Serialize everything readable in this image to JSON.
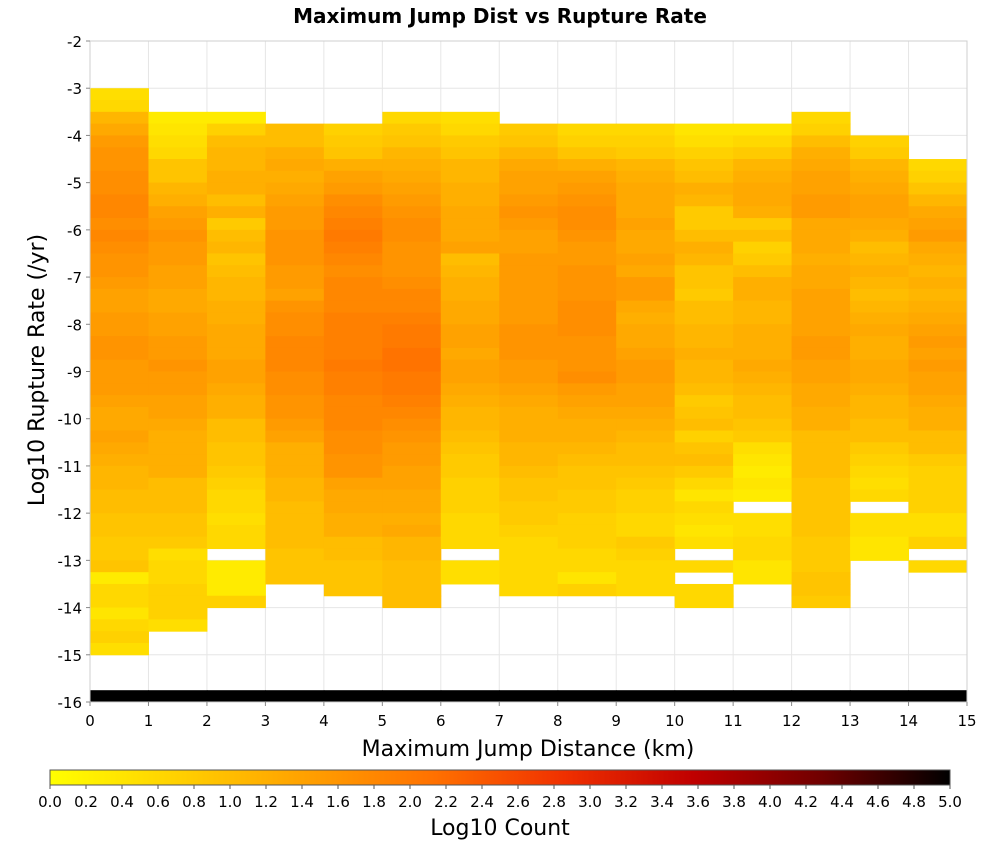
{
  "chart_data": {
    "type": "heatmap",
    "title": "Maximum Jump Dist vs Rupture Rate",
    "xlabel": "Maximum Jump Distance (km)",
    "ylabel": "Log10 Rupture Rate (/yr)",
    "xlim": [
      0,
      15
    ],
    "ylim": [
      -16,
      -2
    ],
    "x_ticks": [
      "0",
      "1",
      "2",
      "3",
      "4",
      "5",
      "6",
      "7",
      "8",
      "9",
      "10",
      "11",
      "12",
      "13",
      "14",
      "15"
    ],
    "y_ticks": [
      "-2",
      "-3",
      "-4",
      "-5",
      "-6",
      "-7",
      "-8",
      "-9",
      "-10",
      "-11",
      "-12",
      "-13",
      "-14",
      "-15",
      "-16"
    ],
    "colorbar": {
      "label": "Log10 Count",
      "range": [
        0,
        5
      ],
      "ticks": [
        "0.0",
        "0.2",
        "0.4",
        "0.6",
        "0.8",
        "1.0",
        "1.2",
        "1.4",
        "1.6",
        "1.8",
        "2.0",
        "2.2",
        "2.4",
        "2.6",
        "2.8",
        "3.0",
        "3.2",
        "3.4",
        "3.6",
        "3.8",
        "4.0",
        "4.2",
        "4.4",
        "4.6",
        "4.8",
        "5.0"
      ],
      "colors": [
        "#ffff00",
        "#ffd000",
        "#ffa000",
        "#ff7000",
        "#f03000",
        "#c00000",
        "#700000",
        "#000000"
      ]
    },
    "bin_width_x": 1,
    "bin_height_y": 0.25,
    "bottom_row_value": 5.0,
    "columns": [
      {
        "x_start": 0,
        "y_top": -3.0,
        "values": [
          0.5,
          0.6,
          1.1,
          1.3,
          1.5,
          1.6,
          1.6,
          1.7,
          1.7,
          1.8,
          1.8,
          1.7,
          1.8,
          1.7,
          1.6,
          1.6,
          1.5,
          1.4,
          1.4,
          1.5,
          1.5,
          1.6,
          1.6,
          1.5,
          1.5,
          1.5,
          1.4,
          1.3,
          1.3,
          1.4,
          1.3,
          1.2,
          1.1,
          1.1,
          1.0,
          1.0,
          0.9,
          0.9,
          0.8,
          0.8,
          0.9,
          0.3,
          0.6,
          0.6,
          0.4,
          0.6,
          0.7,
          0.5
        ]
      },
      {
        "x_start": 1,
        "y_top": -3.5,
        "values": [
          0.3,
          0.4,
          0.5,
          0.6,
          0.9,
          0.9,
          1.1,
          1.2,
          1.4,
          1.5,
          1.6,
          1.5,
          1.5,
          1.4,
          1.4,
          1.3,
          1.3,
          1.4,
          1.4,
          1.5,
          1.5,
          1.6,
          1.5,
          1.5,
          1.4,
          1.4,
          1.3,
          1.2,
          1.2,
          1.2,
          1.2,
          1.0,
          1.0,
          1.0,
          0.9,
          0.9,
          0.8,
          0.5,
          0.6,
          0.6,
          0.7,
          0.7,
          0.7,
          0.5
        ]
      },
      {
        "x_start": 2,
        "y_top": -3.5,
        "values": [
          0.3,
          0.7,
          1.0,
          1.1,
          1.1,
          1.2,
          1.2,
          1.0,
          1.2,
          0.8,
          1.0,
          1.1,
          0.9,
          1.0,
          1.1,
          1.1,
          1.2,
          1.2,
          1.3,
          1.3,
          1.3,
          1.4,
          1.4,
          1.3,
          1.2,
          1.2,
          1.0,
          1.0,
          0.9,
          0.9,
          0.8,
          0.7,
          0.6,
          0.6,
          0.5,
          0.6,
          0.6,
          null,
          0.3,
          0.3,
          0.3,
          0.7
        ]
      },
      {
        "x_start": 3,
        "y_top": -3.75,
        "values": [
          1.0,
          1.0,
          1.2,
          1.3,
          1.2,
          1.3,
          1.4,
          1.5,
          1.5,
          1.6,
          1.6,
          1.6,
          1.5,
          1.5,
          1.4,
          1.6,
          1.7,
          1.7,
          1.8,
          1.8,
          1.8,
          1.7,
          1.7,
          1.6,
          1.6,
          1.5,
          1.4,
          1.2,
          1.2,
          1.2,
          1.1,
          1.1,
          1.0,
          1.0,
          1.0,
          1.0,
          0.9,
          0.9,
          0.9
        ]
      },
      {
        "x_start": 4,
        "y_top": -3.75,
        "values": [
          0.7,
          0.8,
          0.9,
          1.2,
          1.4,
          1.5,
          1.7,
          1.8,
          1.9,
          2.0,
          1.9,
          1.8,
          1.7,
          1.8,
          1.8,
          1.8,
          1.9,
          1.9,
          1.9,
          1.9,
          2.0,
          1.9,
          1.9,
          1.8,
          1.8,
          1.8,
          1.7,
          1.7,
          1.6,
          1.6,
          1.4,
          1.3,
          1.3,
          1.2,
          1.2,
          1.0,
          1.0,
          0.9,
          0.9,
          0.9
        ]
      },
      {
        "x_start": 5,
        "y_top": -3.5,
        "values": [
          0.6,
          0.8,
          0.9,
          1.1,
          1.2,
          1.3,
          1.4,
          1.5,
          1.6,
          1.7,
          1.7,
          1.6,
          1.6,
          1.6,
          1.7,
          1.8,
          1.8,
          1.9,
          2.0,
          2.0,
          2.1,
          2.1,
          2.0,
          2.0,
          1.9,
          1.8,
          1.7,
          1.6,
          1.5,
          1.5,
          1.4,
          1.4,
          1.3,
          1.3,
          1.2,
          1.3,
          1.1,
          1.1,
          1.0,
          1.0,
          1.0,
          1.0
        ]
      },
      {
        "x_start": 6,
        "y_top": -3.5,
        "values": [
          0.5,
          0.6,
          0.8,
          0.9,
          1.1,
          1.1,
          1.2,
          1.2,
          1.3,
          1.3,
          1.3,
          1.4,
          1.0,
          1.1,
          1.2,
          1.2,
          1.3,
          1.3,
          1.4,
          1.4,
          1.3,
          1.4,
          1.4,
          1.3,
          1.2,
          1.1,
          1.1,
          1.0,
          0.9,
          0.8,
          0.8,
          0.7,
          0.7,
          0.7,
          0.6,
          0.6,
          0.6,
          null,
          0.5,
          0.5
        ]
      },
      {
        "x_start": 7,
        "y_top": -3.75,
        "values": [
          0.8,
          0.9,
          1.1,
          1.3,
          1.4,
          1.4,
          1.5,
          1.6,
          1.5,
          1.4,
          1.4,
          1.5,
          1.5,
          1.5,
          1.5,
          1.5,
          1.5,
          1.6,
          1.6,
          1.6,
          1.5,
          1.5,
          1.4,
          1.3,
          1.2,
          1.2,
          1.2,
          1.1,
          1.1,
          1.0,
          0.9,
          0.9,
          0.8,
          0.8,
          0.7,
          0.6,
          0.6,
          0.6,
          0.6,
          0.6
        ]
      },
      {
        "x_start": 8,
        "y_top": -3.75,
        "values": [
          0.6,
          0.7,
          0.9,
          1.2,
          1.4,
          1.5,
          1.6,
          1.7,
          1.7,
          1.6,
          1.5,
          1.5,
          1.6,
          1.6,
          1.6,
          1.7,
          1.7,
          1.7,
          1.6,
          1.6,
          1.6,
          1.7,
          1.5,
          1.4,
          1.3,
          1.2,
          1.2,
          1.1,
          1.0,
          0.9,
          0.9,
          0.8,
          0.8,
          0.7,
          0.7,
          0.7,
          0.6,
          0.6,
          0.4,
          0.7
        ]
      },
      {
        "x_start": 9,
        "y_top": -3.75,
        "values": [
          0.6,
          0.7,
          0.8,
          1.1,
          1.2,
          1.3,
          1.3,
          1.3,
          1.4,
          1.3,
          1.3,
          1.4,
          1.3,
          1.5,
          1.5,
          1.3,
          1.2,
          1.3,
          1.3,
          1.4,
          1.5,
          1.5,
          1.4,
          1.4,
          1.3,
          1.2,
          1.1,
          1.0,
          1.0,
          0.9,
          0.8,
          0.7,
          0.7,
          0.6,
          0.6,
          0.8,
          0.7,
          0.6,
          0.6,
          0.6
        ]
      },
      {
        "x_start": 10,
        "y_top": -3.75,
        "values": [
          0.4,
          0.5,
          0.7,
          0.9,
          1.0,
          1.2,
          1.1,
          0.8,
          0.8,
          1.0,
          1.2,
          1.1,
          0.9,
          0.9,
          0.8,
          1.0,
          1.0,
          1.1,
          1.1,
          1.2,
          1.1,
          1.1,
          1.0,
          0.8,
          0.9,
          1.0,
          0.7,
          0.9,
          1.0,
          0.8,
          0.6,
          0.4,
          0.6,
          0.5,
          0.4,
          0.5,
          null,
          0.6,
          null,
          0.6,
          0.6
        ]
      },
      {
        "x_start": 11,
        "y_top": -3.75,
        "values": [
          0.4,
          0.6,
          0.8,
          1.1,
          1.2,
          1.3,
          1.3,
          1.2,
          0.8,
          1.0,
          0.7,
          0.8,
          1.0,
          1.2,
          1.2,
          1.1,
          1.1,
          1.2,
          1.2,
          1.2,
          1.3,
          1.2,
          1.1,
          1.0,
          1.0,
          0.9,
          0.8,
          0.5,
          0.4,
          0.3,
          0.4,
          0.3,
          null,
          0.5,
          0.5,
          0.6,
          0.6,
          0.4,
          0.4
        ]
      },
      {
        "x_start": 12,
        "y_top": -3.5,
        "values": [
          0.6,
          0.7,
          1.0,
          1.2,
          1.3,
          1.4,
          1.4,
          1.5,
          1.5,
          1.3,
          1.3,
          1.3,
          1.2,
          1.3,
          1.3,
          1.4,
          1.4,
          1.4,
          1.4,
          1.5,
          1.5,
          1.4,
          1.4,
          1.3,
          1.3,
          1.2,
          1.2,
          1.0,
          1.0,
          1.0,
          1.0,
          0.9,
          0.9,
          0.9,
          0.9,
          0.9,
          0.8,
          0.8,
          0.8,
          0.9,
          0.9,
          0.8
        ]
      },
      {
        "x_start": 13,
        "y_top": -4.0,
        "values": [
          0.7,
          0.8,
          1.1,
          1.2,
          1.3,
          1.4,
          1.4,
          1.3,
          1.2,
          1.0,
          1.1,
          1.2,
          1.1,
          1.0,
          1.1,
          1.2,
          1.3,
          1.2,
          1.2,
          1.3,
          1.3,
          1.2,
          1.1,
          1.1,
          1.0,
          1.0,
          0.8,
          0.7,
          0.6,
          0.5,
          0.6,
          null,
          0.5,
          0.5,
          0.4,
          0.4,
          null
        ]
      },
      {
        "x_start": 14,
        "y_top": -4.5,
        "values": [
          0.6,
          0.7,
          0.9,
          1.1,
          1.3,
          1.4,
          1.5,
          1.3,
          1.2,
          1.1,
          1.2,
          1.1,
          1.2,
          1.3,
          1.4,
          1.5,
          1.4,
          1.5,
          1.4,
          1.4,
          1.3,
          1.2,
          1.2,
          1.0,
          1.0,
          0.8,
          0.7,
          0.7,
          0.7,
          0.7,
          0.5,
          0.5,
          0.7,
          null,
          0.6
        ]
      }
    ]
  }
}
